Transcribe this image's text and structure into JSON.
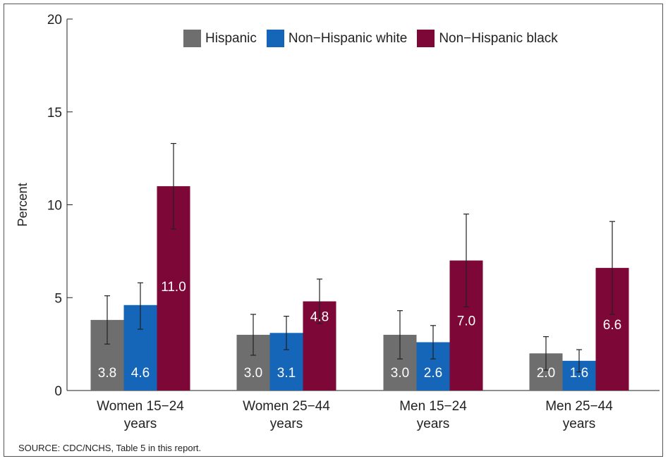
{
  "source_note": "SOURCE: CDC/NCHS, Table 5 in this report.",
  "colors": {
    "Hispanic": "#6e6e6e",
    "Non−Hispanic white": "#1565b8",
    "Non−Hispanic black": "#7d0736"
  },
  "chart_data": {
    "type": "bar",
    "title": "",
    "xlabel": "",
    "ylabel": "Percent",
    "ylim": [
      0,
      20
    ],
    "yticks": [
      0,
      5,
      10,
      15,
      20
    ],
    "grid": false,
    "legend_position": "top",
    "categories": [
      [
        "Women 15−24",
        "years"
      ],
      [
        "Women 25−44",
        "years"
      ],
      [
        "Men 15−24",
        "years"
      ],
      [
        "Men 25−44",
        "years"
      ]
    ],
    "series": [
      {
        "name": "Hispanic",
        "values": [
          3.8,
          3.0,
          3.0,
          2.0
        ],
        "labels": [
          "3.8",
          "3.0",
          "3.0",
          "2.0"
        ],
        "error_low": [
          2.5,
          1.9,
          1.7,
          1.1
        ],
        "error_high": [
          5.1,
          4.1,
          4.3,
          2.9
        ]
      },
      {
        "name": "Non−Hispanic white",
        "values": [
          4.6,
          3.1,
          2.6,
          1.6
        ],
        "labels": [
          "4.6",
          "3.1",
          "2.6",
          "1.6"
        ],
        "error_low": [
          3.3,
          2.2,
          1.7,
          1.0
        ],
        "error_high": [
          5.8,
          4.0,
          3.5,
          2.2
        ]
      },
      {
        "name": "Non−Hispanic black",
        "values": [
          11.0,
          4.8,
          7.0,
          6.6
        ],
        "labels": [
          "11.0",
          "",
          "7.0",
          "6.6"
        ],
        "top_labels": [
          "",
          "4.8",
          "",
          ""
        ],
        "error_low": [
          8.7,
          3.6,
          4.5,
          4.1
        ],
        "error_high": [
          13.3,
          6.0,
          9.5,
          9.1
        ]
      }
    ]
  }
}
